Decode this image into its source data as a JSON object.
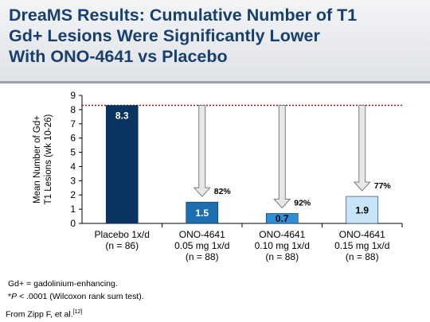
{
  "title": {
    "line1": "DreaMS Results: Cumulative Number of T1",
    "line2": "Gd+ Lesions Were Significantly Lower",
    "line3": "With ONO-4641 vs Placebo"
  },
  "chart_data": {
    "type": "bar",
    "ylabel_line1": "Mean Number of Gd+",
    "ylabel_line2": "T1 Lesions (wk 10-26)",
    "ylim": [
      0,
      9
    ],
    "yticks": [
      0,
      1,
      2,
      3,
      4,
      5,
      6,
      7,
      8,
      9
    ],
    "reference_line": 8.3,
    "categories": [
      [
        "Placebo 1x/d",
        "(n = 86)"
      ],
      [
        "ONO-4641",
        "0.05 mg 1x/d",
        "(n = 88)"
      ],
      [
        "ONO-4641",
        "0.10 mg 1x/d",
        "(n = 88)"
      ],
      [
        "ONO-4641",
        "0.15 mg 1x/d",
        "(n = 88)"
      ]
    ],
    "values": [
      8.3,
      1.5,
      0.7,
      1.9
    ],
    "value_labels": [
      "8.3",
      "1.5",
      "0.7",
      "1.9"
    ],
    "bar_colors": [
      "#0a3560",
      "#1e6fb0",
      "#2d8fd6",
      "#c7e5f7"
    ],
    "value_label_colors": [
      "#ffffff",
      "#ffffff",
      "#000000",
      "#000000"
    ],
    "reductions": [
      "",
      "82%",
      "92%",
      "77%"
    ]
  },
  "footnotes": {
    "abbrev": "Gd+ = gadolinium-enhancing.",
    "p_prefix": "*",
    "p_symbol": "P",
    "p_rest": " < .0001 (Wilcoxon rank sum test).",
    "source": "From Zipp F, et al.",
    "source_ref": "[12]"
  }
}
